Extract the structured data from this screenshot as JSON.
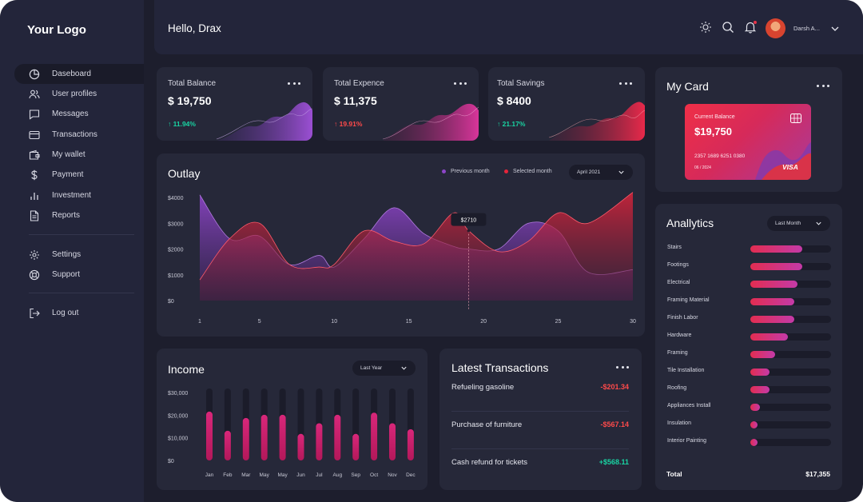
{
  "app": {
    "logo": "Your Logo"
  },
  "header": {
    "greeting": "Hello, Drax",
    "user_name": "Darsh A..."
  },
  "sidebar": {
    "items": [
      {
        "label": "Daseboard",
        "icon": "pie-chart-icon",
        "active": true
      },
      {
        "label": "User profiles",
        "icon": "users-icon"
      },
      {
        "label": "Messages",
        "icon": "message-icon"
      },
      {
        "label": "Transactions",
        "icon": "credit-card-icon"
      },
      {
        "label": "My wallet",
        "icon": "wallet-icon"
      },
      {
        "label": "Payment",
        "icon": "dollar-icon"
      },
      {
        "label": "Investment",
        "icon": "bar-chart-icon"
      },
      {
        "label": "Reports",
        "icon": "file-icon"
      }
    ],
    "settings": [
      {
        "label": "Settings",
        "icon": "gear-icon"
      },
      {
        "label": "Support",
        "icon": "lifebuoy-icon"
      }
    ],
    "logout": {
      "label": "Log out",
      "icon": "logout-icon"
    }
  },
  "stats": [
    {
      "title": "Total Balance",
      "value": "$ 19,750",
      "change": "↑ 11.94%",
      "direction": "up",
      "color": "#19d3a2"
    },
    {
      "title": "Total Expence",
      "value": "$ 11,375",
      "change": "↑ 19.91%",
      "direction": "up",
      "color": "#ff4a4a"
    },
    {
      "title": "Total Savings",
      "value": "$ 8400",
      "change": "↑ 21.17%",
      "direction": "up",
      "color": "#19d3a2"
    }
  ],
  "outlay": {
    "title": "Outlay",
    "legend_previous": "Previous month",
    "legend_selected": "Selected month",
    "period": "April 2021",
    "tooltip": "$2710"
  },
  "income": {
    "title": "Income",
    "period": "Last Year"
  },
  "my_card": {
    "title": "My Card",
    "label": "Current Balance",
    "balance": "$19,750",
    "number": "2357 1689 6251 0380",
    "expiry": "06 / 2024",
    "brand": "VISA"
  },
  "analytics": {
    "title": "Anallytics",
    "period": "Last Month",
    "total_label": "Total",
    "total_value": "$17,355"
  },
  "transactions": {
    "title": "Latest Transactions",
    "items": [
      {
        "name": "Refueling gasoline",
        "amount": "-$201.34",
        "color": "#ff4a4a"
      },
      {
        "name": "Purchase of furniture",
        "amount": "-$567.14",
        "color": "#ff4a4a"
      },
      {
        "name": "Cash refund for tickets",
        "amount": "+$568.11",
        "color": "#19d3a2"
      }
    ]
  },
  "chart_data": [
    {
      "type": "area",
      "title": "Outlay",
      "x": [
        1,
        3,
        5,
        7,
        9,
        10,
        12,
        14,
        16,
        18,
        19,
        21,
        23,
        25,
        27,
        30
      ],
      "x_ticks": [
        1,
        5,
        10,
        15,
        20,
        25,
        30
      ],
      "y_ticks": [
        "$4000",
        "$3000",
        "$2000",
        "$1000",
        "$0"
      ],
      "ylim": [
        0,
        4000
      ],
      "series": [
        {
          "name": "Previous month",
          "color": "#8d45c8",
          "values": [
            4100,
            2400,
            2500,
            1400,
            1750,
            1300,
            2400,
            3600,
            2600,
            2100,
            2000,
            2000,
            3000,
            2700,
            1100,
            1200
          ]
        },
        {
          "name": "Selected month",
          "color": "#e5243a",
          "values": [
            800,
            2400,
            3000,
            1400,
            1300,
            1400,
            2700,
            2300,
            2200,
            3400,
            2710,
            1900,
            2300,
            3400,
            3000,
            4300
          ]
        }
      ]
    },
    {
      "type": "bar",
      "title": "Income",
      "categories": [
        "Jan",
        "Feb",
        "Mar",
        "May",
        "May",
        "Jun",
        "Jul",
        "Aug",
        "Sep",
        "Oct",
        "Nov",
        "Dec"
      ],
      "y_ticks": [
        "$30,000",
        "$20,000",
        "$10,000",
        "$0"
      ],
      "ylim": [
        0,
        32000
      ],
      "values": [
        23000,
        14000,
        20000,
        21500,
        21500,
        12500,
        17500,
        21500,
        12500,
        22500,
        17500,
        14700
      ]
    },
    {
      "type": "bar",
      "title": "Anallytics",
      "orientation": "horizontal",
      "categories": [
        "Stairs",
        "Footings",
        "Electrical",
        "Framing Material",
        "Finish Labor",
        "Hardware",
        "Framing",
        "Tile Installation",
        "Roofing",
        "Appliances Install",
        "Insulation",
        "Interior Painting"
      ],
      "values": [
        0.64,
        0.64,
        0.58,
        0.54,
        0.54,
        0.47,
        0.31,
        0.24,
        0.24,
        0.12,
        0.09,
        0.08
      ]
    }
  ]
}
